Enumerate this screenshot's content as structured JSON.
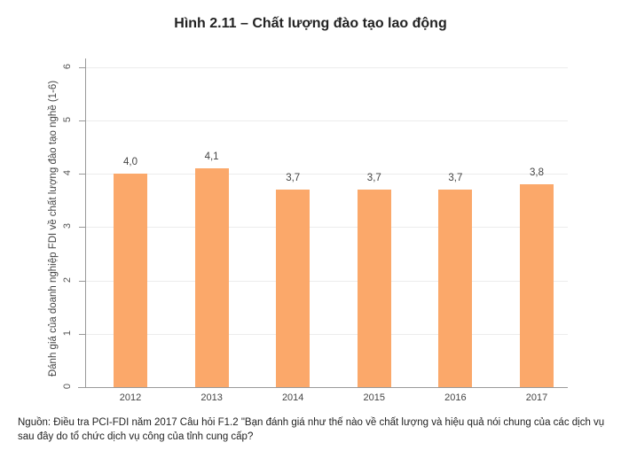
{
  "title": "Hình 2.11 – Chất lượng đào tạo lao động",
  "source_note": "Nguồn: Điều tra PCI-FDI năm 2017 Câu hỏi F1.2 \"Bạn đánh giá như thế nào về chất lượng và hiệu quả nói chung của các dịch vụ sau đây do tổ chức dịch vụ công của tỉnh cung cấp?",
  "bar_color": "#fba86a",
  "chart_data": {
    "type": "bar",
    "title": "Hình 2.11 – Chất lượng đào tạo lao động",
    "xlabel": "",
    "ylabel": "Đánh giá của doanh nghiệp FDI về chất lượng đào tạo nghề (1-6)",
    "categories": [
      "2012",
      "2013",
      "2014",
      "2015",
      "2016",
      "2017"
    ],
    "values": [
      4.0,
      4.1,
      3.7,
      3.7,
      3.7,
      3.8
    ],
    "value_labels": [
      "4,0",
      "4,1",
      "3,7",
      "3,7",
      "3,7",
      "3,8"
    ],
    "ylim": [
      0,
      6
    ],
    "yticks": [
      "0",
      "1",
      "2",
      "3",
      "4",
      "5",
      "6"
    ],
    "grid": true,
    "legend": null
  }
}
